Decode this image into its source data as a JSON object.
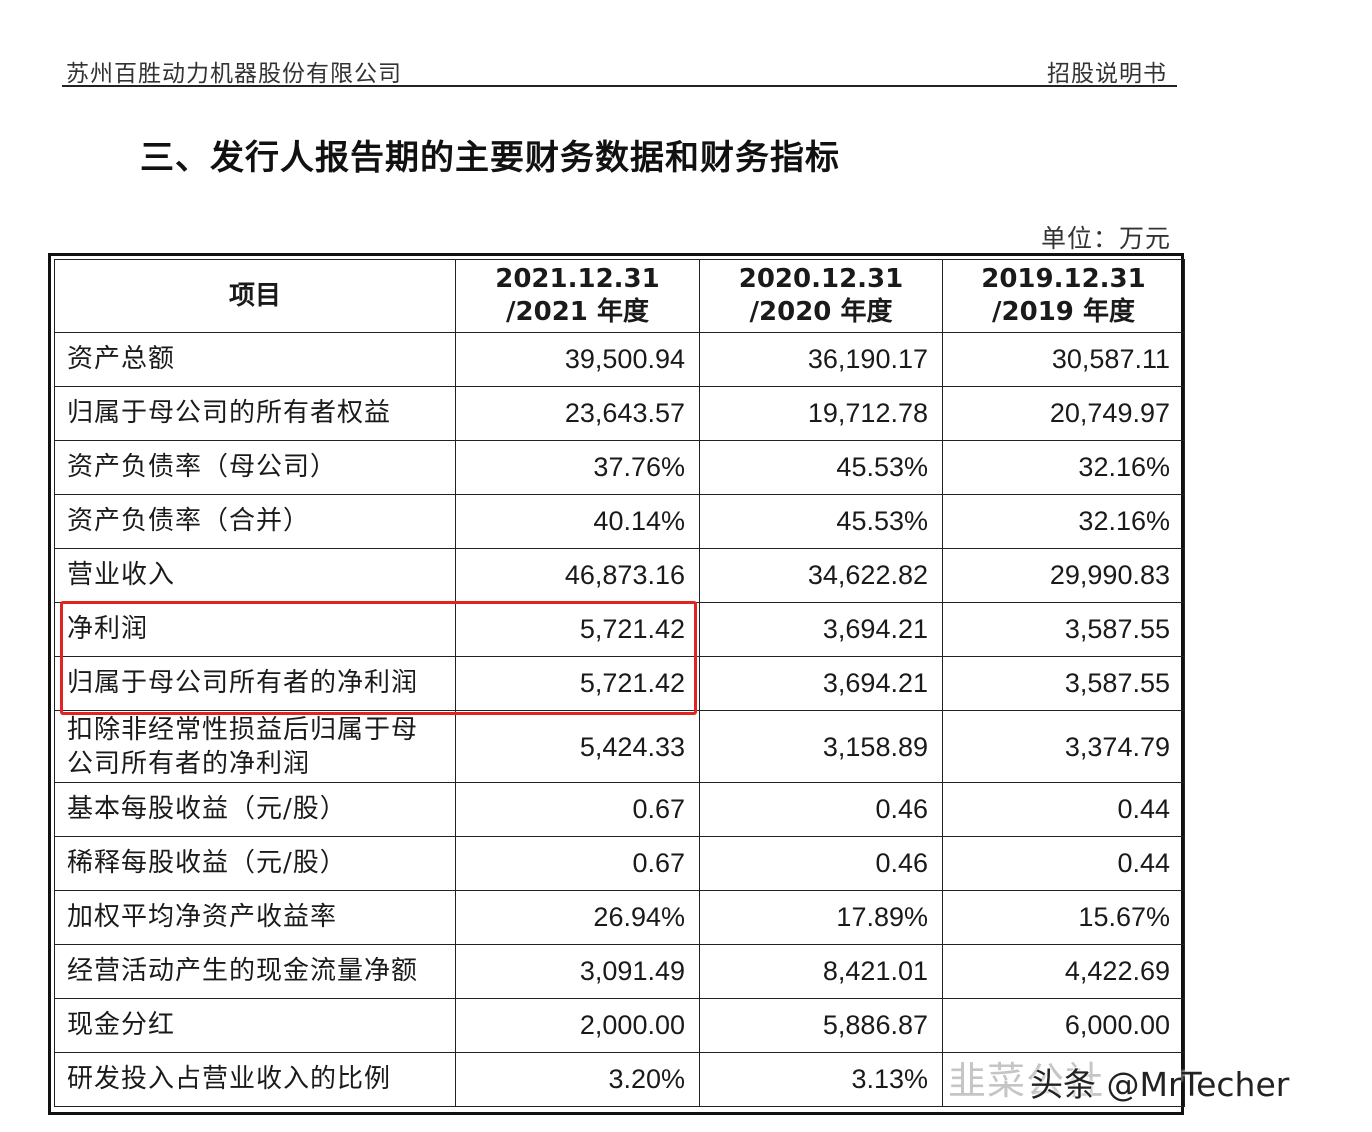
{
  "header": {
    "company": "苏州百胜动力机器股份有限公司",
    "doc_type": "招股说明书"
  },
  "section_title": "三、发行人报告期的主要财务数据和财务指标",
  "unit_label": "单位：万元",
  "table": {
    "columns": [
      {
        "line1": "项目",
        "line2": ""
      },
      {
        "line1": "2021.12.31",
        "line2": "/2021 年度"
      },
      {
        "line1": "2020.12.31",
        "line2": "/2020 年度"
      },
      {
        "line1": "2019.12.31",
        "line2": "/2019 年度"
      }
    ],
    "rows": [
      {
        "label": "资产总额",
        "values": [
          "39,500.94",
          "36,190.17",
          "30,587.11"
        ]
      },
      {
        "label": "归属于母公司的所有者权益",
        "values": [
          "23,643.57",
          "19,712.78",
          "20,749.97"
        ]
      },
      {
        "label": "资产负债率（母公司）",
        "values": [
          "37.76%",
          "45.53%",
          "32.16%"
        ]
      },
      {
        "label": "资产负债率（合并）",
        "values": [
          "40.14%",
          "45.53%",
          "32.16%"
        ]
      },
      {
        "label": "营业收入",
        "values": [
          "46,873.16",
          "34,622.82",
          "29,990.83"
        ]
      },
      {
        "label": "净利润",
        "values": [
          "5,721.42",
          "3,694.21",
          "3,587.55"
        ]
      },
      {
        "label": "归属于母公司所有者的净利润",
        "values": [
          "5,721.42",
          "3,694.21",
          "3,587.55"
        ]
      },
      {
        "label": "扣除非经常性损益后归属于母公司所有者的净利润",
        "values": [
          "5,424.33",
          "3,158.89",
          "3,374.79"
        ]
      },
      {
        "label": "基本每股收益（元/股）",
        "values": [
          "0.67",
          "0.46",
          "0.44"
        ]
      },
      {
        "label": "稀释每股收益（元/股）",
        "values": [
          "0.67",
          "0.46",
          "0.44"
        ]
      },
      {
        "label": "加权平均净资产收益率",
        "values": [
          "26.94%",
          "17.89%",
          "15.67%"
        ]
      },
      {
        "label": "经营活动产生的现金流量净额",
        "values": [
          "3,091.49",
          "8,421.01",
          "4,422.69"
        ]
      },
      {
        "label": "现金分红",
        "values": [
          "2,000.00",
          "5,886.87",
          "6,000.00"
        ]
      },
      {
        "label": "研发投入占营业收入的比例",
        "values": [
          "3.20%",
          "3.13%",
          ""
        ]
      }
    ]
  },
  "highlight_color": "#e32222",
  "watermark": {
    "faded": "韭菜公社",
    "overlay": "头条 @MrTecher"
  }
}
